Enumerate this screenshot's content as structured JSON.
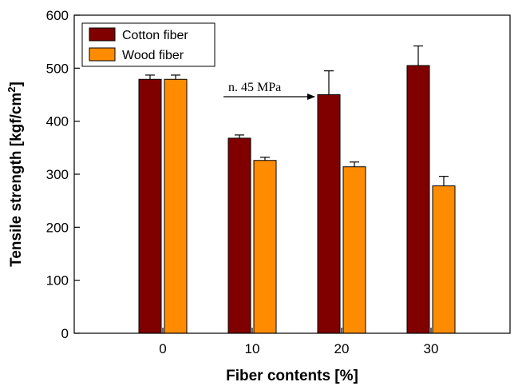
{
  "chart_data": {
    "type": "bar",
    "title": "",
    "xlabel": "Fiber contents [%]",
    "ylabel_main": "Tensile strength [kgf/cm",
    "ylabel_sup": "2",
    "ylabel_end": "]",
    "categories": [
      "0",
      "10",
      "20",
      "30"
    ],
    "ylim": [
      0,
      600
    ],
    "yticks": [
      0,
      100,
      200,
      300,
      400,
      500,
      600
    ],
    "ytick_labels": [
      "0",
      "100",
      "200",
      "300",
      "400",
      "500",
      "600"
    ],
    "grid": false,
    "legend_position": "top-left",
    "series": [
      {
        "name": "Cotton fiber",
        "color": "#800000",
        "values": [
          479,
          368,
          450,
          505
        ],
        "errors": [
          8,
          6,
          45,
          37
        ]
      },
      {
        "name": "Wood fiber",
        "color": "#FF8C00",
        "values": [
          479,
          326,
          314,
          278
        ],
        "errors": [
          8,
          6,
          9,
          18
        ]
      }
    ],
    "annotations": [
      {
        "text": "n. 45 MPa",
        "arrow_target": {
          "category": "20",
          "series": "Cotton fiber"
        }
      }
    ]
  }
}
